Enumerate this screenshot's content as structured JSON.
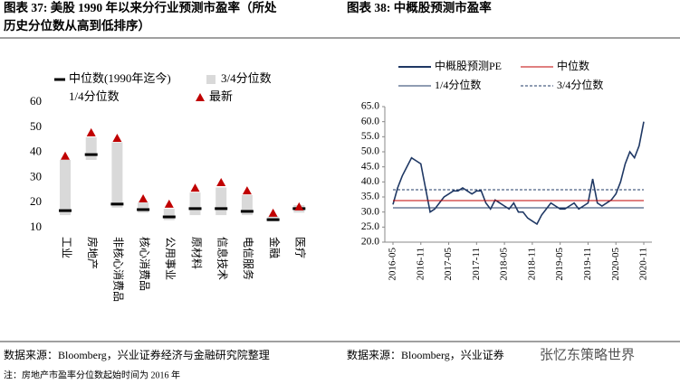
{
  "chart_data": [
    {
      "type": "range",
      "title": [
        "图表 37: 美股 1990 年以来分行业预测市盈率（所处",
        "历史分位数从高到低排序）"
      ],
      "categories": [
        "工业",
        "房地产",
        "非核心消费品",
        "核心消费品",
        "公用事业",
        "原材料",
        "信息技术",
        "电信服务",
        "金融",
        "医疗"
      ],
      "series": [
        {
          "name": "中位数(1990年迄今)",
          "color": "#000000",
          "values": [
            16.8,
            39.1,
            19.4,
            17.2,
            14.3,
            17.6,
            17.6,
            16.5,
            13.2,
            17.6
          ]
        },
        {
          "name": "3/4分位数",
          "color": "#d9d9d9",
          "values": [
            37,
            46,
            44,
            20,
            17.5,
            24,
            26,
            23,
            14.5,
            19
          ]
        },
        {
          "name": "1/4分位数",
          "color": "#ffffff",
          "values": [
            15,
            37,
            18,
            16,
            13,
            15,
            15,
            15,
            12.5,
            16
          ]
        },
        {
          "name": "最新",
          "color": "#c00000",
          "values": [
            38.5,
            47.8,
            45.6,
            21.5,
            19.4,
            25.8,
            28,
            24.7,
            15.8,
            18.3
          ]
        }
      ],
      "ylim": [
        10,
        60
      ],
      "yticks": [
        10,
        20,
        30,
        40,
        50,
        60
      ]
    },
    {
      "type": "line",
      "title": "图表 38: 中概股预测市盈率",
      "x": [
        "2016-05",
        "2016-06",
        "2016-07",
        "2016-08",
        "2016-09",
        "2016-10",
        "2016-11",
        "2016-12",
        "2017-01",
        "2017-02",
        "2017-03",
        "2017-04",
        "2017-05",
        "2017-06",
        "2017-07",
        "2017-08",
        "2017-09",
        "2017-10",
        "2017-11",
        "2017-12",
        "2018-01",
        "2018-02",
        "2018-03",
        "2018-04",
        "2018-05",
        "2018-06",
        "2018-07",
        "2018-08",
        "2018-09",
        "2018-10",
        "2018-11",
        "2018-12",
        "2019-01",
        "2019-02",
        "2019-03",
        "2019-04",
        "2019-05",
        "2019-06",
        "2019-07",
        "2019-08",
        "2019-09",
        "2019-10",
        "2019-11",
        "2019-12",
        "2020-01",
        "2020-02",
        "2020-03",
        "2020-04",
        "2020-05",
        "2020-06",
        "2020-07",
        "2020-08",
        "2020-09",
        "2020-10",
        "2020-11"
      ],
      "series": [
        {
          "name": "中概股预测PE",
          "color": "#1f3864",
          "values": [
            32.5,
            38,
            42,
            45,
            48,
            47,
            46,
            38,
            30,
            31,
            33,
            35,
            36,
            37,
            37,
            38,
            37,
            36,
            37,
            37,
            33,
            31,
            34,
            33,
            32,
            31,
            33,
            30,
            30,
            28,
            27,
            26,
            29,
            31,
            33,
            32,
            31,
            31,
            32,
            33,
            31,
            32,
            33,
            41,
            33,
            32,
            33,
            34,
            36,
            40,
            46,
            50,
            48,
            52,
            60
          ]
        },
        {
          "name": "中位数",
          "color": "#c00000",
          "value": 33.8
        },
        {
          "name": "1/4分位数",
          "color": "#1f3864",
          "value": 31.4
        },
        {
          "name": "3/4分位数",
          "color": "#1f3864",
          "value": 37.4,
          "dashed": true
        }
      ],
      "xlim": [
        "2016-05",
        "2020-11"
      ],
      "xticks": [
        "2016-05",
        "2016-11",
        "2017-05",
        "2017-11",
        "2018-05",
        "2018-11",
        "2019-05",
        "2019-11",
        "2020-05",
        "2020-11"
      ],
      "ylim": [
        20,
        65
      ],
      "yticks": [
        {
          "value": 20,
          "label": "20.0"
        },
        {
          "value": 25,
          "label": "25.0"
        },
        {
          "value": 30,
          "label": "30.0"
        },
        {
          "value": 35,
          "label": "35.0"
        },
        {
          "value": 40,
          "label": "40.0"
        },
        {
          "value": 45,
          "label": "45.0"
        },
        {
          "value": 50,
          "label": "50.0"
        },
        {
          "value": 55,
          "label": "55.0"
        },
        {
          "value": 60,
          "label": "60.0"
        },
        {
          "value": 65,
          "label": "65.0"
        }
      ]
    }
  ],
  "footer": {
    "source_left": "数据来源：Bloomberg，兴业证券经济与金融研究院整理",
    "source_right": "数据来源：Bloomberg，兴业证券",
    "watermark": "张忆东策略世界",
    "note": "注：房地产市盈率分位数起始时间为 2016 年"
  }
}
